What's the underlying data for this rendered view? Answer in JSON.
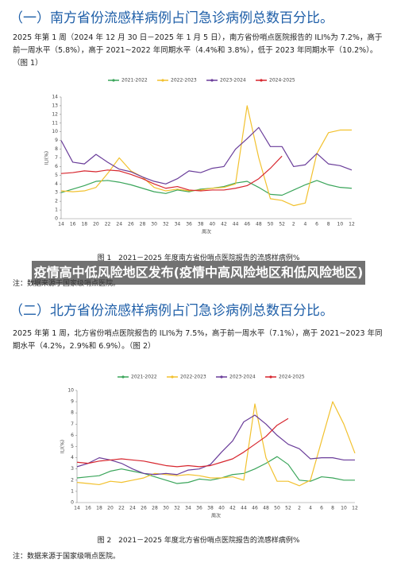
{
  "document": {
    "heading1": "（一）南方省份流感样病例占门急诊病例总数百分比。",
    "paragraph1": "2025 年第 1 周（2024 年 12 月 30 日－2025 年 1 月 5 日），南方省份哨点医院报告的 ILI%为 7.2%，高于前一周水平（5.8%），高于 2021~2022 年同期水平（4.4%和 3.8%），低于 2023 年同期水平（10.2%）。（图 1）",
    "caption1": "图 1　2021－2025 年度南方省份哨点医院报告的流感样病例%",
    "note1": "注：数据来源于国家级哨点医院。",
    "heading2": "（二）北方省份流感样病例占门急诊病例总数百分比。",
    "paragraph2": "2025 年第 1 周，北方省份哨点医院报告的 ILI%为 7.5%，高于前一周水平（7.1%），高于 2021~2023 年同期水平（4.2%，2.9%和 6.9%）。（图 2）",
    "caption2": "图 2　2021－2025 年度北方省份哨点医院报告的流感样病例%",
    "note2": "注：数据来源于国家级哨点医院。",
    "overlay": "疫情高中低风险地区发布(疫情中高风险地区和低风险地区)"
  },
  "chart_data": [
    {
      "type": "line",
      "x_label": "周次",
      "y_label": "ILI(%)",
      "categories": [
        "14",
        "16",
        "18",
        "20",
        "22",
        "24",
        "26",
        "28",
        "30",
        "32",
        "34",
        "36",
        "38",
        "40",
        "42",
        "44",
        "46",
        "48",
        "50",
        "52",
        "2",
        "4",
        "6",
        "8",
        "10",
        "12"
      ],
      "ylim": [
        0,
        14
      ],
      "yticks": [
        0,
        1,
        2,
        3,
        4,
        5,
        6,
        7,
        8,
        9,
        10,
        11,
        12,
        13,
        14
      ],
      "legend": "top",
      "series": [
        {
          "name": "2021-2022",
          "color": "#3aa55a",
          "values": [
            3.0,
            3.4,
            3.8,
            4.3,
            4.4,
            4.2,
            3.9,
            3.5,
            3.1,
            2.9,
            3.3,
            3.1,
            3.4,
            3.5,
            3.7,
            4.1,
            4.3,
            3.6,
            2.8,
            2.7,
            3.3,
            3.9,
            4.4,
            3.9,
            3.6,
            3.5
          ]
        },
        {
          "name": "2022-2023",
          "color": "#f2c12e",
          "values": [
            3.2,
            3.1,
            3.2,
            3.6,
            5.2,
            7.0,
            5.5,
            4.8,
            3.6,
            3.2,
            3.4,
            3.2,
            3.3,
            3.5,
            3.6,
            4.0,
            13.0,
            7.0,
            2.3,
            2.1,
            1.5,
            1.8,
            7.5,
            9.9,
            10.2,
            10.2
          ]
        },
        {
          "name": "2023-2024",
          "color": "#6a3d9a",
          "values": [
            9.0,
            6.5,
            6.3,
            7.4,
            6.5,
            5.7,
            5.4,
            4.8,
            4.3,
            4.0,
            4.6,
            5.5,
            5.3,
            5.8,
            6.0,
            8.0,
            9.2,
            10.5,
            8.3,
            8.3,
            6.0,
            6.2,
            7.5,
            6.3,
            6.1,
            5.6
          ]
        },
        {
          "name": "2024-2025",
          "color": "#d7262e",
          "values": [
            5.2,
            5.3,
            5.5,
            5.4,
            5.6,
            5.5,
            5.1,
            4.6,
            4.0,
            3.5,
            3.7,
            3.3,
            3.2,
            3.3,
            3.3,
            3.5,
            3.8,
            4.6,
            5.8,
            7.2,
            null,
            null,
            null,
            null,
            null,
            null
          ]
        }
      ]
    },
    {
      "type": "line",
      "x_label": "周次",
      "y_label": "ILI(%)",
      "categories": [
        "14",
        "16",
        "18",
        "20",
        "22",
        "24",
        "26",
        "28",
        "30",
        "32",
        "34",
        "36",
        "38",
        "40",
        "42",
        "44",
        "46",
        "48",
        "50",
        "52",
        "2",
        "4",
        "6",
        "8",
        "10",
        "12"
      ],
      "ylim": [
        0,
        10
      ],
      "yticks": [
        0,
        1,
        2,
        3,
        4,
        5,
        6,
        7,
        8,
        9,
        10
      ],
      "legend": "top",
      "series": [
        {
          "name": "2021-2022",
          "color": "#3aa55a",
          "values": [
            2.2,
            2.3,
            2.4,
            2.8,
            3.0,
            2.8,
            2.6,
            2.3,
            2.0,
            1.7,
            1.8,
            2.1,
            2.0,
            2.2,
            2.5,
            2.6,
            3.0,
            3.5,
            4.1,
            3.4,
            2.0,
            1.9,
            2.3,
            2.2,
            2.0,
            2.0
          ]
        },
        {
          "name": "2022-2023",
          "color": "#f2c12e",
          "values": [
            1.8,
            1.7,
            1.6,
            1.9,
            1.8,
            2.0,
            2.2,
            2.6,
            2.5,
            2.4,
            2.5,
            2.4,
            2.2,
            2.2,
            2.3,
            2.0,
            8.8,
            4.0,
            1.9,
            1.9,
            1.5,
            2.0,
            5.5,
            9.0,
            7.0,
            4.4
          ]
        },
        {
          "name": "2023-2024",
          "color": "#6a3d9a",
          "values": [
            3.2,
            3.5,
            4.0,
            3.8,
            3.5,
            3.0,
            2.6,
            2.5,
            2.6,
            2.5,
            2.9,
            3.0,
            3.4,
            4.5,
            5.5,
            7.2,
            7.8,
            7.0,
            6.0,
            5.2,
            4.8,
            3.9,
            4.0,
            4.0,
            3.8,
            3.8
          ]
        },
        {
          "name": "2024-2025",
          "color": "#d7262e",
          "values": [
            3.6,
            3.5,
            3.7,
            3.8,
            3.9,
            3.8,
            3.7,
            3.5,
            3.3,
            3.2,
            3.3,
            3.2,
            3.3,
            3.6,
            3.9,
            4.5,
            5.2,
            5.9,
            6.9,
            7.5,
            null,
            null,
            null,
            null,
            null,
            null
          ]
        }
      ]
    }
  ]
}
